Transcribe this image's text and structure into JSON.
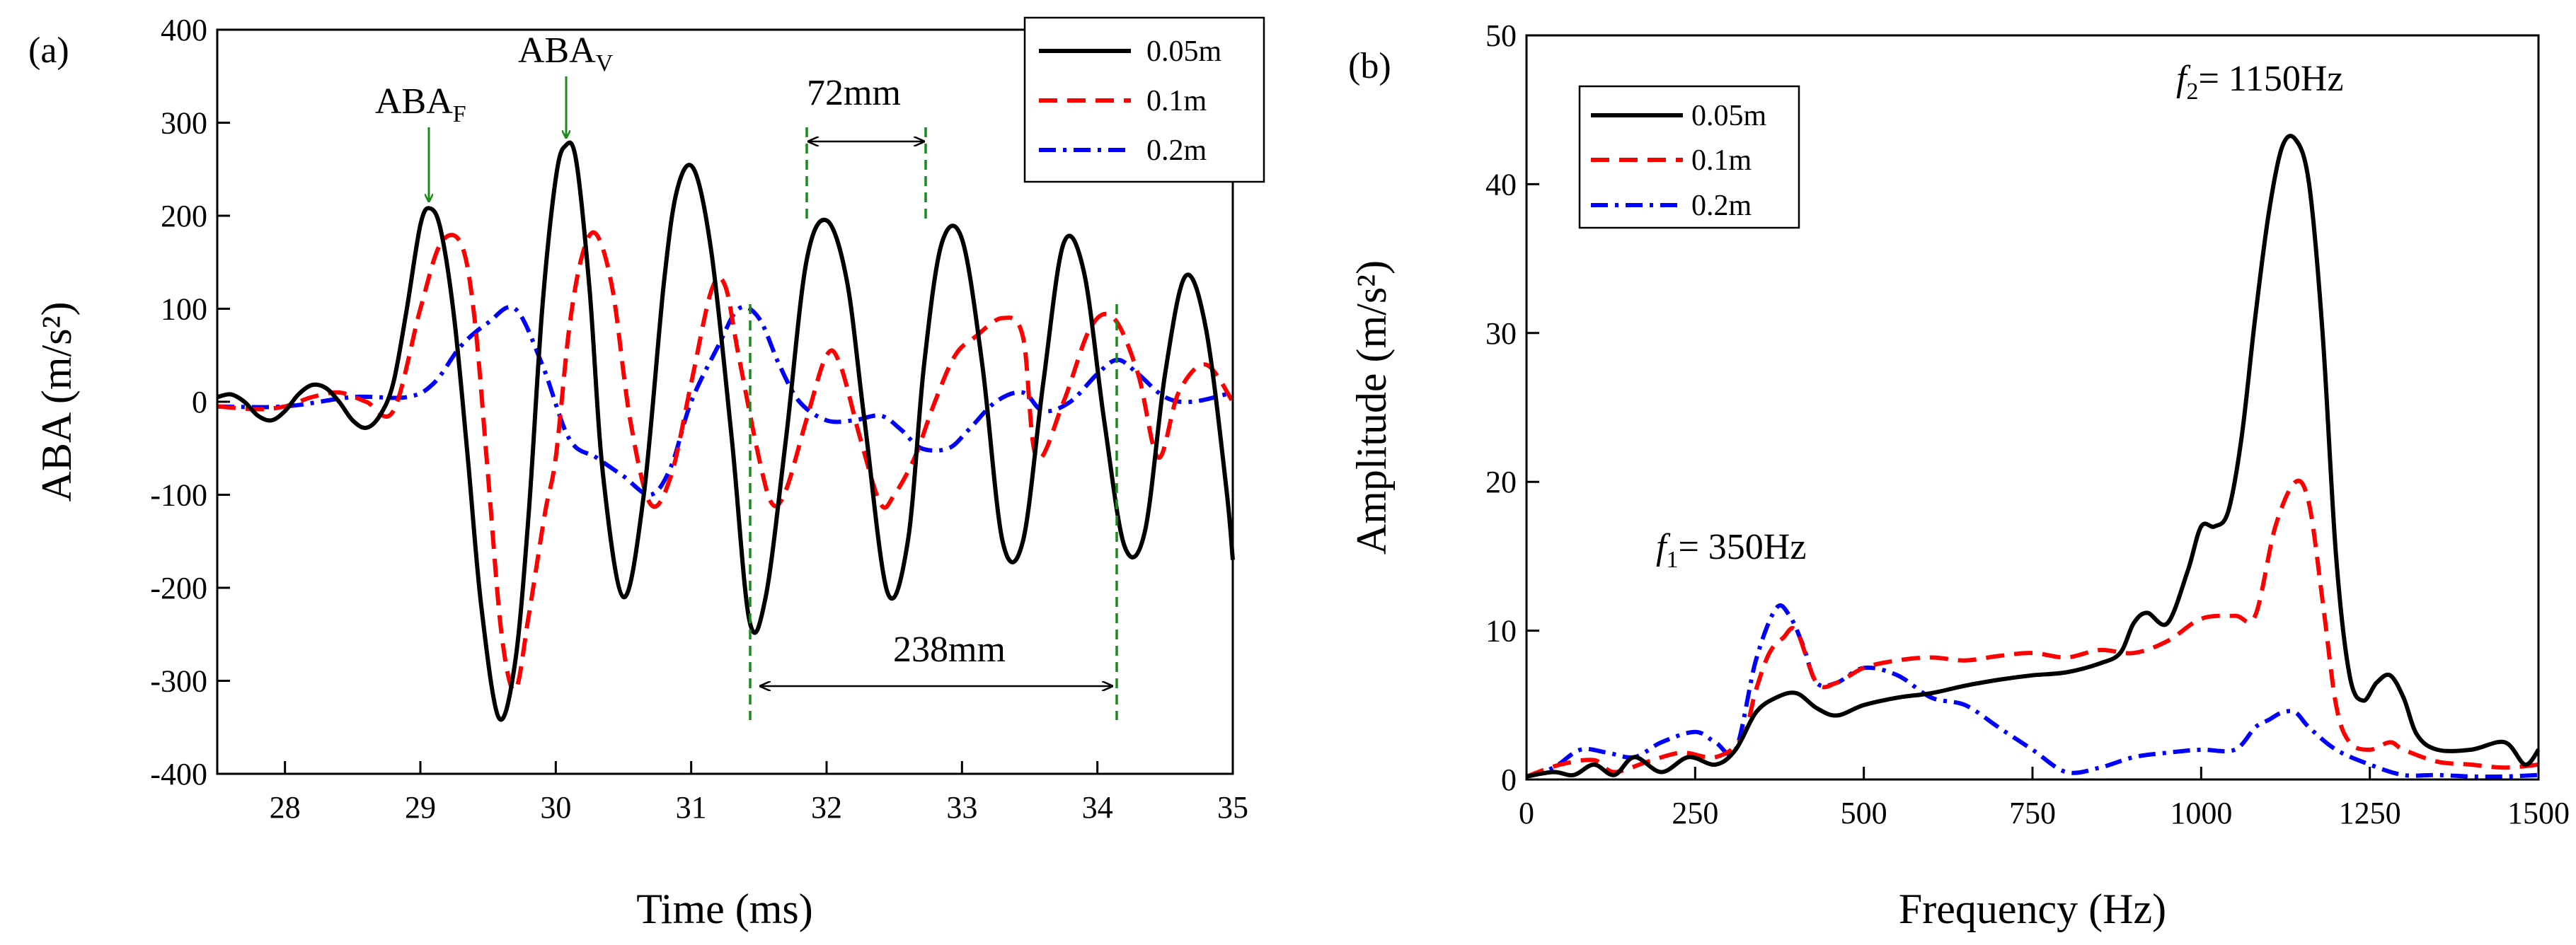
{
  "colors": {
    "series_005": "#000000",
    "series_01": "#ff0000",
    "series_02": "#0000ff",
    "annotation": "#1a8a1a"
  },
  "chart_data": [
    {
      "type": "line",
      "panel_label": "(a)",
      "title": "",
      "xlabel": "Time (ms)",
      "ylabel": "ABA (m/s²)",
      "xlim": [
        27.5,
        35
      ],
      "ylim": [
        -400,
        400
      ],
      "xticks": [
        "28",
        "29",
        "30",
        "31",
        "32",
        "33",
        "34",
        "35"
      ],
      "yticks": [
        "-400",
        "-300",
        "-200",
        "-100",
        "0",
        "100",
        "200",
        "300",
        "400"
      ],
      "legend": {
        "position": "top-right",
        "entries": [
          "0.05m",
          "0.1m",
          "0.2m"
        ]
      },
      "annotations": {
        "aba_f": "ABA",
        "aba_f_sub": "F",
        "aba_v": "ABA",
        "aba_v_sub": "V",
        "dim_72": "72mm",
        "dim_238": "238mm"
      },
      "series": [
        {
          "name": "0.05m",
          "x": [
            27.5,
            27.6,
            27.7,
            27.8,
            27.9,
            28.0,
            28.1,
            28.2,
            28.3,
            28.4,
            28.5,
            28.6,
            28.7,
            28.8,
            28.9,
            29.0,
            29.07,
            29.15,
            29.25,
            29.35,
            29.45,
            29.58,
            29.7,
            29.8,
            29.9,
            30.0,
            30.07,
            30.15,
            30.25,
            30.35,
            30.5,
            30.65,
            30.8,
            30.9,
            31.02,
            31.15,
            31.3,
            31.43,
            31.55,
            31.7,
            31.85,
            32.0,
            32.15,
            32.28,
            32.45,
            32.6,
            32.72,
            32.85,
            33.0,
            33.15,
            33.3,
            33.45,
            33.6,
            33.75,
            33.9,
            34.05,
            34.2,
            34.35,
            34.5,
            34.65,
            34.8,
            34.95,
            35.0
          ],
          "values": [
            5,
            8,
            0,
            -15,
            -20,
            -10,
            8,
            18,
            15,
            0,
            -20,
            -28,
            -15,
            20,
            100,
            190,
            208,
            185,
            90,
            -60,
            -220,
            -340,
            -280,
            -120,
            100,
            240,
            275,
            260,
            120,
            -80,
            -210,
            -100,
            130,
            230,
            250,
            160,
            -40,
            -235,
            -210,
            -40,
            150,
            195,
            130,
            -20,
            -205,
            -150,
            40,
            170,
            175,
            40,
            -150,
            -150,
            20,
            170,
            140,
            -20,
            -155,
            -140,
            30,
            135,
            80,
            -90,
            -170
          ]
        },
        {
          "name": "0.1m",
          "x": [
            27.5,
            27.8,
            28.0,
            28.2,
            28.4,
            28.6,
            28.8,
            29.0,
            29.15,
            29.3,
            29.4,
            29.5,
            29.6,
            29.7,
            29.8,
            29.92,
            30.0,
            30.1,
            30.2,
            30.3,
            30.42,
            30.55,
            30.7,
            30.85,
            31.0,
            31.15,
            31.25,
            31.35,
            31.5,
            31.6,
            31.7,
            31.85,
            32.0,
            32.1,
            32.25,
            32.4,
            32.5,
            32.65,
            32.8,
            32.95,
            33.1,
            33.3,
            33.45,
            33.55,
            33.75,
            33.95,
            34.12,
            34.3,
            34.45,
            34.6,
            34.8,
            35.0
          ],
          "values": [
            -5,
            -8,
            -5,
            5,
            10,
            0,
            -10,
            100,
            170,
            170,
            90,
            -80,
            -250,
            -310,
            -230,
            -120,
            -60,
            80,
            160,
            180,
            120,
            -20,
            -110,
            -80,
            20,
            120,
            125,
            50,
            -60,
            -110,
            -95,
            -20,
            50,
            40,
            -40,
            -110,
            -100,
            -60,
            0,
            50,
            70,
            90,
            70,
            -60,
            0,
            80,
            90,
            30,
            -60,
            10,
            40,
            0
          ]
        },
        {
          "name": "0.2m",
          "x": [
            27.5,
            28.0,
            28.5,
            28.9,
            29.1,
            29.3,
            29.5,
            29.7,
            29.9,
            30.1,
            30.3,
            30.5,
            30.7,
            30.85,
            31.0,
            31.2,
            31.35,
            31.5,
            31.65,
            31.8,
            32.0,
            32.2,
            32.4,
            32.55,
            32.7,
            32.9,
            33.05,
            33.25,
            33.45,
            33.6,
            33.8,
            34.0,
            34.15,
            34.3,
            34.5,
            34.7,
            35.0
          ],
          "values": [
            -5,
            -5,
            5,
            5,
            20,
            60,
            85,
            100,
            40,
            -40,
            -60,
            -80,
            -100,
            -70,
            0,
            60,
            100,
            90,
            40,
            0,
            -20,
            -20,
            -15,
            -30,
            -50,
            -50,
            -30,
            0,
            10,
            -10,
            0,
            30,
            45,
            30,
            5,
            0,
            10
          ]
        }
      ]
    },
    {
      "type": "line",
      "panel_label": "(b)",
      "title": "",
      "xlabel": "Frequency (Hz)",
      "ylabel": "Amplitude (m/s²)",
      "xlim": [
        0,
        1500
      ],
      "ylim": [
        0,
        50
      ],
      "xticks": [
        "0",
        "250",
        "500",
        "750",
        "1000",
        "1250",
        "1500"
      ],
      "yticks": [
        "0",
        "10",
        "20",
        "30",
        "40",
        "50"
      ],
      "legend": {
        "position": "top-left",
        "entries": [
          "0.05m",
          "0.1m",
          "0.2m"
        ]
      },
      "annotations": {
        "f1_sym": "f",
        "f1_sub": "1",
        "f1_val": "= 350Hz",
        "f2_sym": "f",
        "f2_sub": "2",
        "f2_val": "= 1150Hz"
      },
      "series": [
        {
          "name": "0.05m",
          "x": [
            0,
            40,
            70,
            100,
            130,
            160,
            200,
            240,
            280,
            310,
            340,
            370,
            400,
            430,
            460,
            500,
            550,
            600,
            650,
            700,
            750,
            800,
            850,
            880,
            900,
            920,
            950,
            980,
            1000,
            1020,
            1040,
            1060,
            1080,
            1100,
            1120,
            1140,
            1160,
            1180,
            1200,
            1220,
            1240,
            1260,
            1280,
            1300,
            1320,
            1350,
            1400,
            1450,
            1480,
            1500
          ],
          "values": [
            0.2,
            0.5,
            0.3,
            1.0,
            0.3,
            1.5,
            0.5,
            1.5,
            1.0,
            2.0,
            4.5,
            5.5,
            5.8,
            4.8,
            4.3,
            5.0,
            5.5,
            5.8,
            6.3,
            6.7,
            7.0,
            7.2,
            7.8,
            8.5,
            10.5,
            11.2,
            10.5,
            14.0,
            17.0,
            17.0,
            18.0,
            23.0,
            31.0,
            38.0,
            42.5,
            43.0,
            40.0,
            30.0,
            15.0,
            7.0,
            5.3,
            6.5,
            7.0,
            5.5,
            3.0,
            2.0,
            2.0,
            2.5,
            1.0,
            2.0
          ]
        },
        {
          "name": "0.1m",
          "x": [
            0,
            50,
            100,
            130,
            180,
            230,
            280,
            320,
            340,
            360,
            380,
            400,
            430,
            460,
            500,
            550,
            600,
            650,
            700,
            750,
            800,
            850,
            900,
            950,
            1000,
            1050,
            1080,
            1110,
            1140,
            1160,
            1180,
            1200,
            1220,
            1250,
            1280,
            1300,
            1350,
            1400,
            1450,
            1500
          ],
          "values": [
            0.2,
            1.0,
            1.3,
            0.5,
            1.2,
            1.8,
            1.5,
            2.8,
            6.0,
            8.5,
            9.5,
            10.0,
            6.5,
            6.5,
            7.5,
            8.0,
            8.2,
            8.0,
            8.3,
            8.5,
            8.2,
            8.7,
            8.5,
            9.3,
            10.8,
            11.0,
            11.0,
            17.0,
            20.0,
            18.5,
            12.0,
            5.0,
            2.5,
            2.0,
            2.5,
            2.0,
            1.2,
            1.0,
            0.8,
            1.0
          ]
        },
        {
          "name": "0.2m",
          "x": [
            0,
            40,
            80,
            120,
            160,
            200,
            250,
            280,
            310,
            340,
            370,
            390,
            410,
            430,
            460,
            500,
            550,
            600,
            650,
            700,
            750,
            800,
            850,
            900,
            950,
            1000,
            1050,
            1080,
            1100,
            1120,
            1140,
            1160,
            1200,
            1250,
            1300,
            1350,
            1400,
            1450,
            1500
          ],
          "values": [
            0.2,
            0.8,
            2.0,
            1.8,
            1.5,
            2.5,
            3.2,
            2.5,
            2.0,
            8.0,
            11.5,
            11.0,
            9.0,
            6.5,
            6.5,
            7.5,
            7.0,
            5.5,
            5.0,
            3.5,
            2.0,
            0.5,
            0.8,
            1.5,
            1.8,
            2.0,
            2.0,
            3.5,
            4.0,
            4.5,
            4.5,
            3.5,
            2.0,
            1.0,
            0.3,
            0.3,
            0.2,
            0.2,
            0.3
          ]
        }
      ]
    }
  ]
}
